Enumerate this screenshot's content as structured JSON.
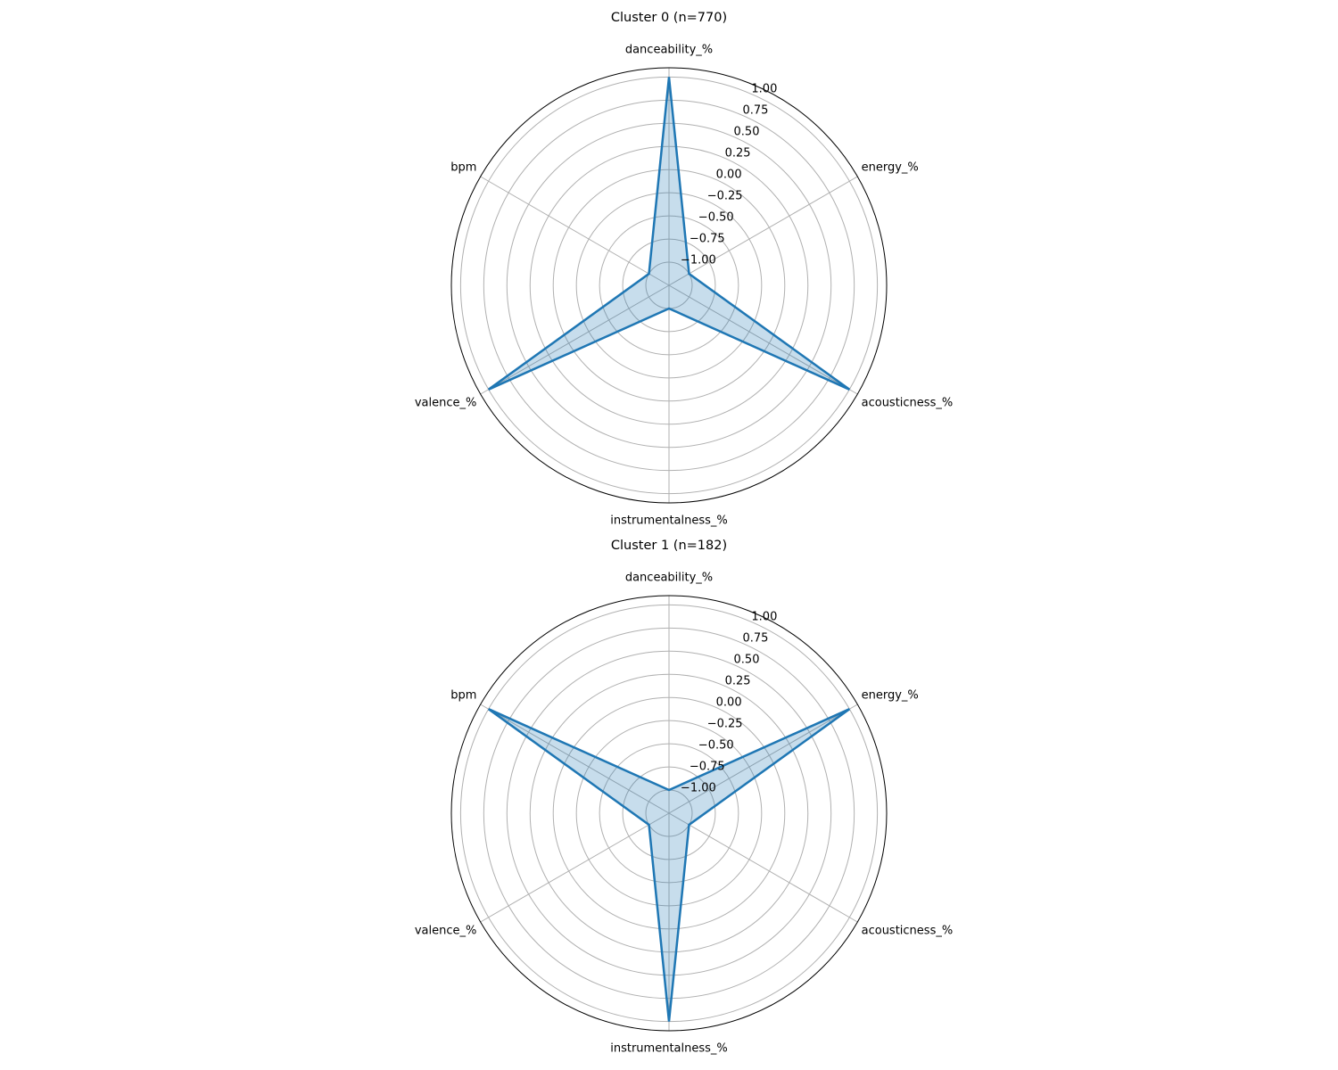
{
  "chart_data": [
    {
      "type": "radar",
      "title": "Cluster 0 (n=770)",
      "axes": [
        "danceability_%",
        "energy_%",
        "acousticness_%",
        "instrumentalness_%",
        "valence_%",
        "bpm"
      ],
      "rlim": [
        -1.25,
        1.1
      ],
      "rticks": [
        "1.00",
        "0.75",
        "0.50",
        "0.25",
        "0.00",
        "−0.25",
        "−0.50",
        "−0.75",
        "−1.00"
      ],
      "grid": true,
      "series": [
        {
          "values": [
            1.0,
            -1.0,
            1.0,
            -1.0,
            1.0,
            -1.0
          ]
        }
      ]
    },
    {
      "type": "radar",
      "title": "Cluster 1 (n=182)",
      "axes": [
        "danceability_%",
        "energy_%",
        "acousticness_%",
        "instrumentalness_%",
        "valence_%",
        "bpm"
      ],
      "rlim": [
        -1.25,
        1.1
      ],
      "rticks": [
        "1.00",
        "0.75",
        "0.50",
        "0.25",
        "0.00",
        "−0.25",
        "−0.50",
        "−0.75",
        "−1.00"
      ],
      "grid": true,
      "series": [
        {
          "values": [
            -1.0,
            1.0,
            -1.0,
            1.0,
            -1.0,
            1.0
          ]
        }
      ]
    }
  ],
  "style": {
    "line_color": "#1f77b4",
    "fill_color": "#1f77b4",
    "grid_color": "#b0b0b0",
    "frame_color": "#000000"
  }
}
